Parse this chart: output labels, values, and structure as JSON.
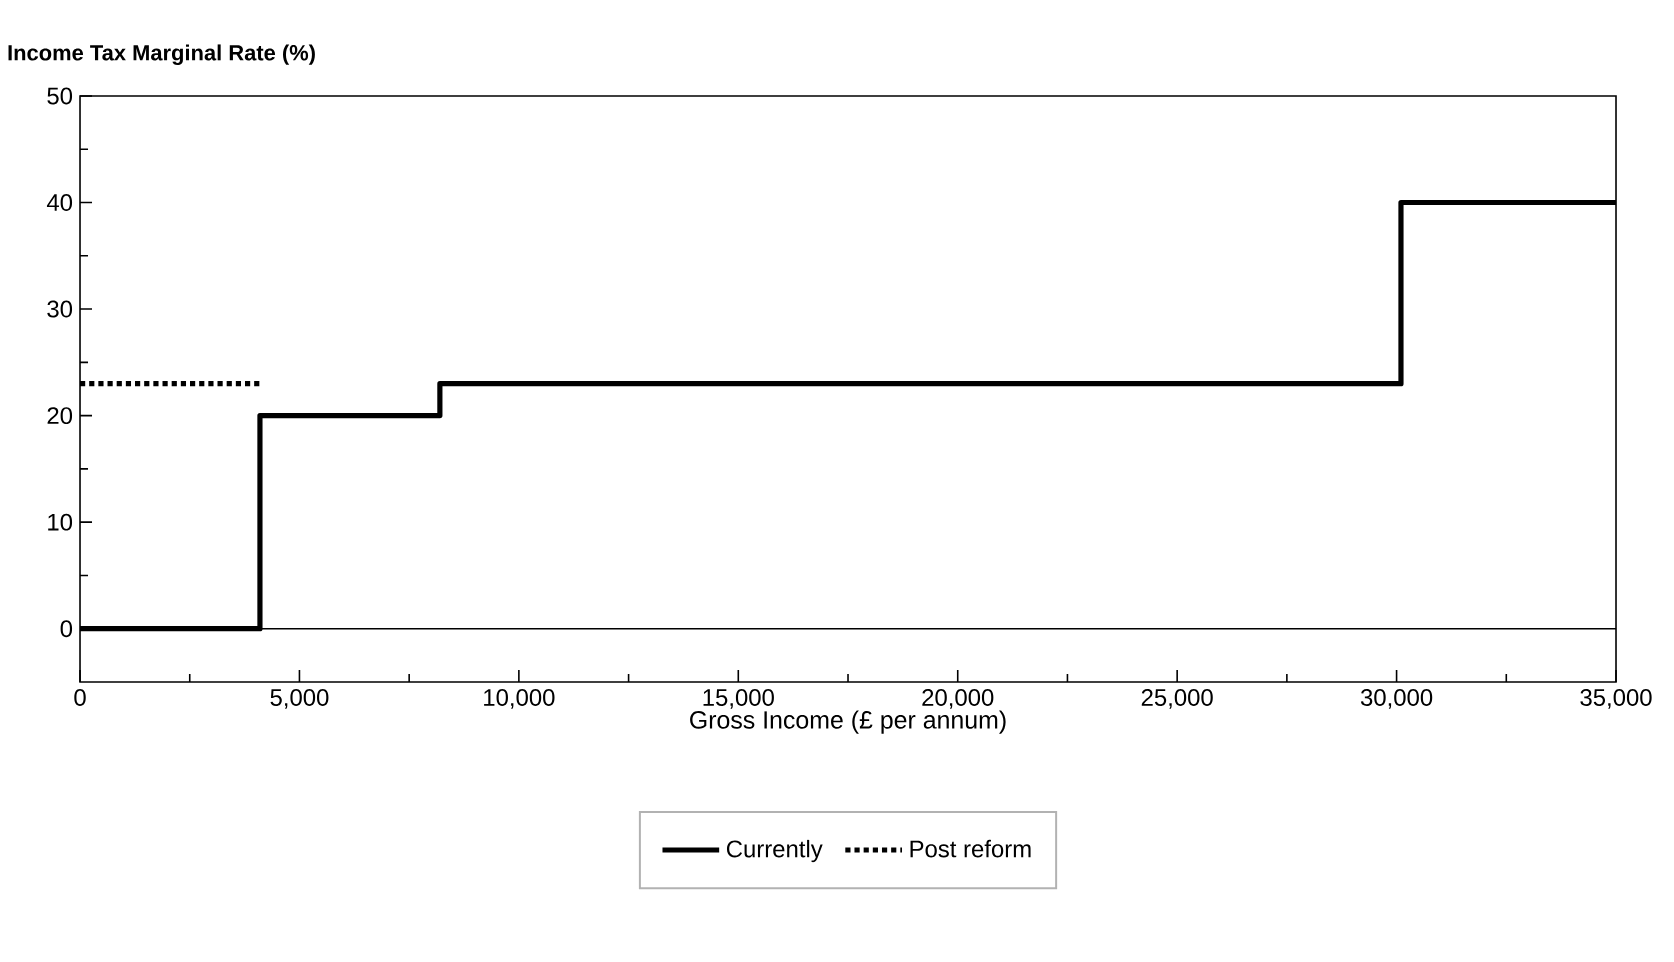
{
  "chart_data": {
    "type": "step",
    "ylabel": "Income Tax Marginal Rate (%)",
    "xlabel": "Gross Income (£ per annum)",
    "series": [
      {
        "name": "Currently",
        "color": "#000000",
        "line_style": "solid",
        "x": [
          0,
          4100,
          8200,
          30100,
          35000
        ],
        "values": [
          0,
          20,
          23,
          40,
          40
        ]
      },
      {
        "name": "Post reform",
        "color": "#000000",
        "line_style": "dotted",
        "x": [
          0,
          4100
        ],
        "values": [
          23,
          23
        ]
      }
    ],
    "xlim": [
      0,
      35000
    ],
    "ylim": [
      -5,
      50
    ],
    "xticks": [
      0,
      {
        "value": 5000,
        "label": "5,000"
      },
      {
        "value": 10000,
        "label": "10,000"
      },
      {
        "value": 15000,
        "label": "15,000"
      },
      {
        "value": 20000,
        "label": "20,000"
      },
      {
        "value": 25000,
        "label": "25,000"
      },
      {
        "value": 30000,
        "label": "30,000"
      },
      {
        "value": 35000,
        "label": "35,000"
      }
    ],
    "yticks": [
      0,
      10,
      20,
      30,
      40,
      50
    ],
    "ref_lines": [
      {
        "axis": "y",
        "value": 0,
        "color": "#000000"
      }
    ],
    "grid": false,
    "legend": "bottom",
    "marker": "none"
  }
}
